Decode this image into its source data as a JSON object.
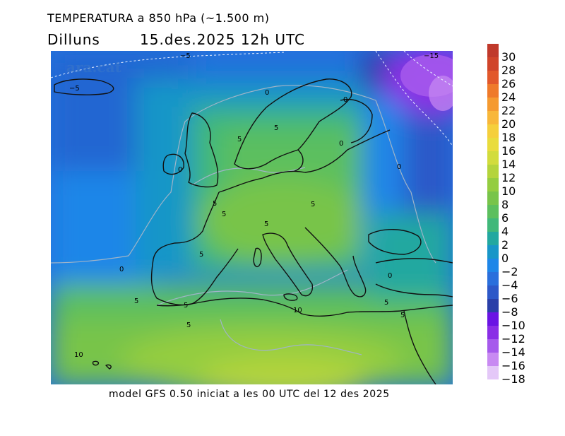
{
  "header": {
    "title": "TEMPERATURA a 850 hPa (~1.500 m)",
    "day": "Dilluns",
    "datetime": "15.des.2025 12h UTC"
  },
  "watermark": "ara.cat",
  "footer": "model GFS 0.50 iniciat a les 00 UTC del 12 des 2025",
  "legend": {
    "segments": [
      {
        "value": "30",
        "color": "#c0392b"
      },
      {
        "value": "28",
        "color": "#d0442a"
      },
      {
        "value": "26",
        "color": "#e2582b"
      },
      {
        "value": "24",
        "color": "#ef7a2a"
      },
      {
        "value": "22",
        "color": "#f59a30"
      },
      {
        "value": "20",
        "color": "#f8b73a"
      },
      {
        "value": "18",
        "color": "#f5cf3c"
      },
      {
        "value": "16",
        "color": "#e9dc3d"
      },
      {
        "value": "14",
        "color": "#d2dc3c"
      },
      {
        "value": "12",
        "color": "#b4d43c"
      },
      {
        "value": "10",
        "color": "#94cd40"
      },
      {
        "value": "8",
        "color": "#78c44a"
      },
      {
        "value": "6",
        "color": "#5cbf5e"
      },
      {
        "value": "4",
        "color": "#40b87a"
      },
      {
        "value": "2",
        "color": "#22a8a0"
      },
      {
        "value": "0",
        "color": "#1896c8"
      },
      {
        "value": "−2",
        "color": "#1e86e8"
      },
      {
        "value": "−4",
        "color": "#2a6fdc"
      },
      {
        "value": "−6",
        "color": "#2d58c8"
      },
      {
        "value": "−8",
        "color": "#2a3fa8"
      },
      {
        "value": "−10",
        "color": "#6a14e4"
      },
      {
        "value": "−12",
        "color": "#8a2ee6"
      },
      {
        "value": "−14",
        "color": "#a65aec"
      },
      {
        "value": "−16",
        "color": "#c88af2"
      },
      {
        "value": "−18",
        "color": "#e4c8f8"
      }
    ]
  },
  "contour_labels": [
    "−5",
    "−5",
    "−15",
    "0",
    "0",
    "5",
    "5",
    "0",
    "0",
    "5",
    "5",
    "5",
    "5",
    "5",
    "0",
    "5",
    "0",
    "5",
    "5",
    "10",
    "5",
    "5",
    "10",
    "0"
  ]
}
